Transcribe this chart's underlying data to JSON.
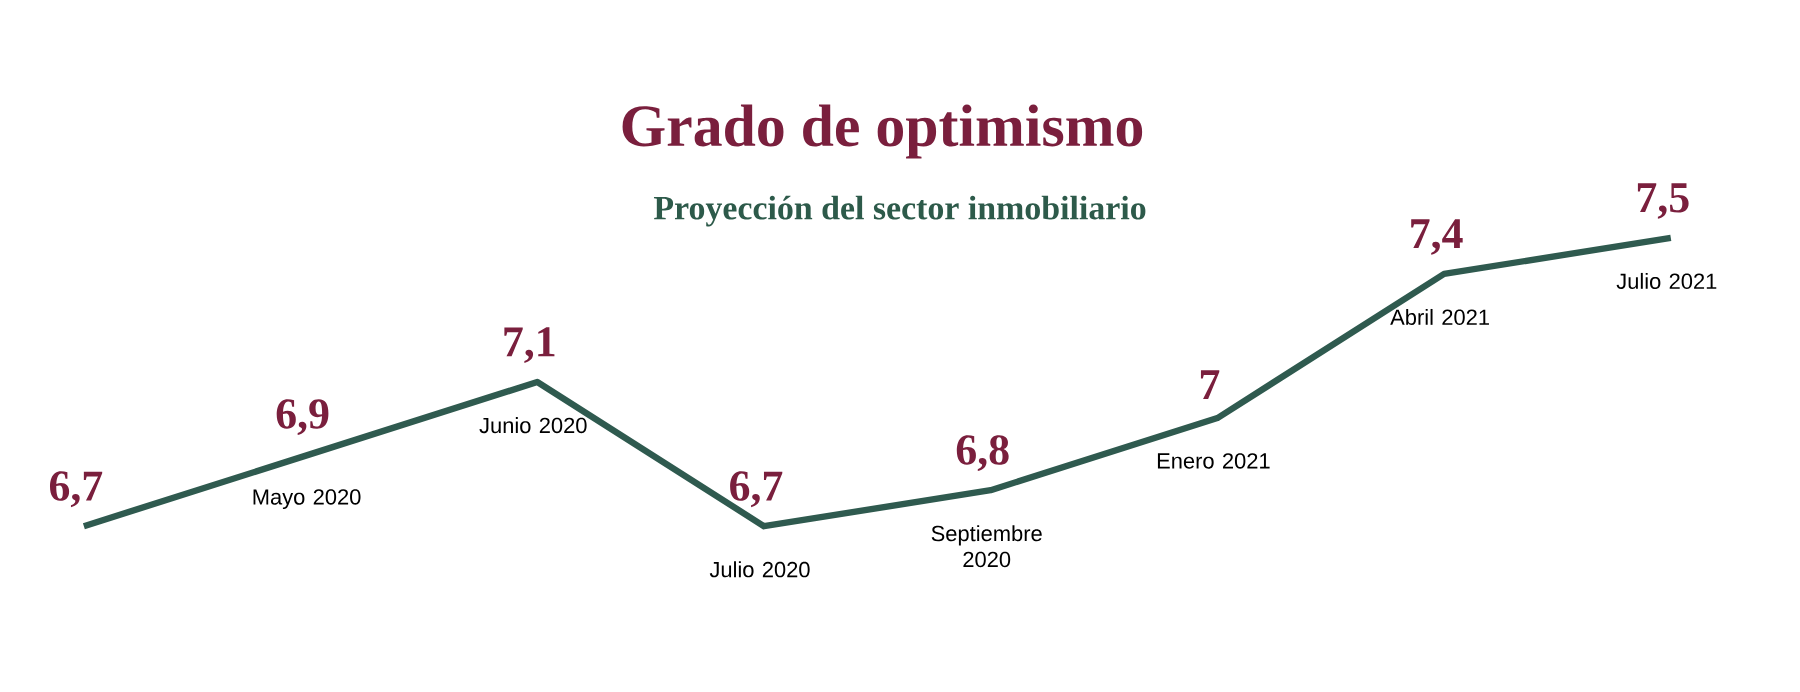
{
  "chart_data": {
    "type": "line",
    "title": "Grado de optimismo",
    "subtitle": "Proyección del sector inmobiliario",
    "categories": [
      null,
      "Mayo 2020",
      "Junio 2020",
      "Julio 2020",
      "Septiembre 2020",
      "Enero 2021",
      "Abril 2021",
      "Julio 2021"
    ],
    "values": [
      6.7,
      6.9,
      7.1,
      6.7,
      6.8,
      7,
      7.4,
      7.5
    ],
    "value_labels": [
      "6,7",
      "6,9",
      "7,1",
      "6,7",
      "6,8",
      "7",
      "7,4",
      "7,5"
    ],
    "color": "#2f5a4f",
    "marker": "none",
    "line_style": "solid"
  }
}
